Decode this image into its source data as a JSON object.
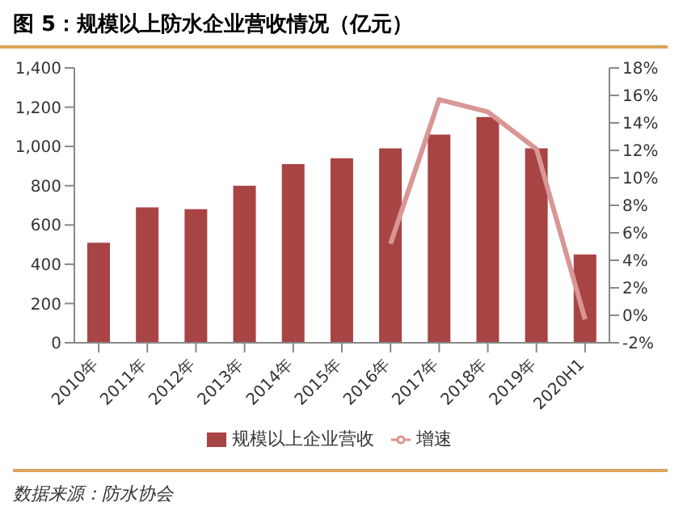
{
  "chart_data": {
    "type": "bar",
    "title": "图 5：规模以上防水企业营收情况（亿元）",
    "categories": [
      "2010年",
      "2011年",
      "2012年",
      "2013年",
      "2014年",
      "2015年",
      "2016年",
      "2017年",
      "2018年",
      "2019年",
      "2020H1"
    ],
    "series": [
      {
        "name": "规模以上企业营收",
        "color": "#a84444",
        "values": [
          510,
          690,
          680,
          800,
          910,
          940,
          990,
          1060,
          1150,
          990,
          450
        ]
      },
      {
        "name": "增速",
        "type": "line",
        "axis": "y2",
        "color": "#d99694",
        "values": [
          null,
          null,
          null,
          null,
          null,
          null,
          5.2,
          15.7,
          14.8,
          12.1,
          -0.3
        ]
      }
    ],
    "ylim": [
      0,
      1400
    ],
    "yticks": [
      {
        "value": 0,
        "label": "0"
      },
      {
        "value": 200,
        "label": "200"
      },
      {
        "value": 400,
        "label": "400"
      },
      {
        "value": 600,
        "label": "600"
      },
      {
        "value": 800,
        "label": "800"
      },
      {
        "value": 1000,
        "label": "1,000"
      },
      {
        "value": 1200,
        "label": "1,200"
      },
      {
        "value": 1400,
        "label": "1,400"
      }
    ],
    "y2lim": [
      -2,
      18
    ],
    "y2ticks": [
      {
        "value": -2,
        "label": "-2%"
      },
      {
        "value": 0,
        "label": "0%"
      },
      {
        "value": 2,
        "label": "2%"
      },
      {
        "value": 4,
        "label": "4%"
      },
      {
        "value": 6,
        "label": "6%"
      },
      {
        "value": 8,
        "label": "8%"
      },
      {
        "value": 10,
        "label": "10%"
      },
      {
        "value": 12,
        "label": "12%"
      },
      {
        "value": 14,
        "label": "14%"
      },
      {
        "value": 16,
        "label": "16%"
      },
      {
        "value": 18,
        "label": "18%"
      }
    ],
    "grid": false,
    "legend": "bottom",
    "marker": "none",
    "annotations": [
      "数据来源：防水协会"
    ]
  }
}
